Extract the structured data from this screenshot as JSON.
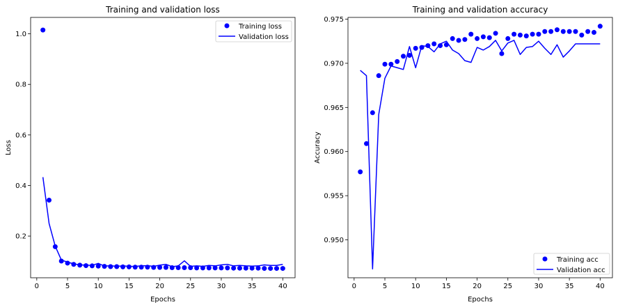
{
  "chart_data": [
    {
      "type": "line",
      "title": "Training and validation loss",
      "xlabel": "Epochs",
      "ylabel": "Loss",
      "xlim": [
        -1,
        42
      ],
      "ylim": [
        0.035,
        1.065
      ],
      "xticks": [
        0,
        5,
        10,
        15,
        20,
        25,
        30,
        35,
        40
      ],
      "yticks": [
        0.2,
        0.4,
        0.6,
        0.8,
        1.0
      ],
      "ytick_labels": [
        "0.2",
        "0.4",
        "0.6",
        "0.8",
        "1.0"
      ],
      "legend": "top-right",
      "grid": false,
      "x": [
        1,
        2,
        3,
        4,
        5,
        6,
        7,
        8,
        9,
        10,
        11,
        12,
        13,
        14,
        15,
        16,
        17,
        18,
        19,
        20,
        21,
        22,
        23,
        24,
        25,
        26,
        27,
        28,
        29,
        30,
        31,
        32,
        33,
        34,
        35,
        36,
        37,
        38,
        39,
        40
      ],
      "series": [
        {
          "name": "Training loss",
          "style": "points",
          "color": "#0000ff",
          "values": [
            1.015,
            0.342,
            0.158,
            0.101,
            0.093,
            0.088,
            0.085,
            0.083,
            0.082,
            0.081,
            0.08,
            0.079,
            0.079,
            0.078,
            0.078,
            0.077,
            0.077,
            0.077,
            0.076,
            0.076,
            0.076,
            0.075,
            0.075,
            0.075,
            0.075,
            0.074,
            0.074,
            0.074,
            0.074,
            0.074,
            0.074,
            0.073,
            0.073,
            0.073,
            0.073,
            0.073,
            0.072,
            0.072,
            0.072,
            0.072
          ]
        },
        {
          "name": "Validation loss",
          "style": "line",
          "color": "#0000ff",
          "values": [
            0.433,
            0.25,
            0.16,
            0.105,
            0.097,
            0.09,
            0.086,
            0.085,
            0.084,
            0.092,
            0.081,
            0.083,
            0.08,
            0.082,
            0.08,
            0.08,
            0.082,
            0.083,
            0.08,
            0.085,
            0.088,
            0.079,
            0.082,
            0.102,
            0.08,
            0.082,
            0.08,
            0.084,
            0.082,
            0.086,
            0.088,
            0.082,
            0.084,
            0.082,
            0.081,
            0.082,
            0.086,
            0.084,
            0.084,
            0.088
          ]
        }
      ]
    },
    {
      "type": "line",
      "title": "Training and validation accuracy",
      "xlabel": "Epochs",
      "ylabel": "Accuracy",
      "xlim": [
        -1,
        42
      ],
      "ylim": [
        0.9457,
        0.9752
      ],
      "xticks": [
        0,
        5,
        10,
        15,
        20,
        25,
        30,
        35,
        40
      ],
      "yticks": [
        0.95,
        0.955,
        0.96,
        0.965,
        0.97,
        0.975
      ],
      "ytick_labels": [
        "0.950",
        "0.955",
        "0.960",
        "0.965",
        "0.970",
        "0.975"
      ],
      "legend": "bottom-right",
      "grid": false,
      "x": [
        1,
        2,
        3,
        4,
        5,
        6,
        7,
        8,
        9,
        10,
        11,
        12,
        13,
        14,
        15,
        16,
        17,
        18,
        19,
        20,
        21,
        22,
        23,
        24,
        25,
        26,
        27,
        28,
        29,
        30,
        31,
        32,
        33,
        34,
        35,
        36,
        37,
        38,
        39,
        40
      ],
      "series": [
        {
          "name": "Training acc",
          "style": "points",
          "color": "#0000ff",
          "values": [
            0.9577,
            0.9609,
            0.9644,
            0.9686,
            0.9699,
            0.9699,
            0.9702,
            0.9708,
            0.9709,
            0.9717,
            0.9718,
            0.972,
            0.9722,
            0.972,
            0.9721,
            0.9728,
            0.9726,
            0.9727,
            0.9733,
            0.9728,
            0.973,
            0.9729,
            0.9734,
            0.9711,
            0.9728,
            0.9733,
            0.9732,
            0.9731,
            0.9733,
            0.9733,
            0.9736,
            0.9736,
            0.9738,
            0.9736,
            0.9736,
            0.9736,
            0.9732,
            0.9736,
            0.9735,
            0.9742
          ]
        },
        {
          "name": "Validation acc",
          "style": "line",
          "color": "#0000ff",
          "values": [
            0.9692,
            0.9686,
            0.9467,
            0.9642,
            0.9683,
            0.9697,
            0.9695,
            0.9693,
            0.9719,
            0.9695,
            0.972,
            0.9719,
            0.9713,
            0.9722,
            0.9725,
            0.9715,
            0.9711,
            0.9703,
            0.9701,
            0.9718,
            0.9715,
            0.9719,
            0.9726,
            0.9714,
            0.9723,
            0.9726,
            0.971,
            0.9718,
            0.9719,
            0.9725,
            0.9717,
            0.971,
            0.9721,
            0.9707,
            0.9714,
            0.9722,
            0.9722,
            0.9722,
            0.9722,
            0.9722
          ]
        }
      ]
    }
  ]
}
